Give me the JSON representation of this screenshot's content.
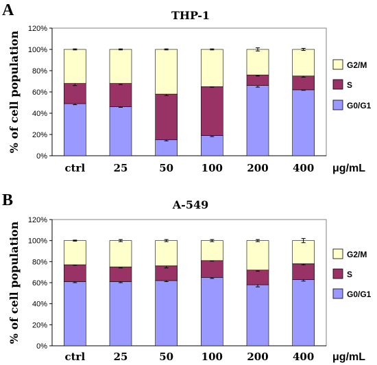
{
  "chart_data": [
    {
      "type": "bar",
      "stacked": true,
      "panel_label": "A",
      "title": "THP-1",
      "ylabel": "% of cell population",
      "xunit": "μg/mL",
      "categories": [
        "ctrl",
        "25",
        "50",
        "100",
        "200",
        "400"
      ],
      "yticks": [
        "0%",
        "20%",
        "40%",
        "60%",
        "80%",
        "100%",
        "120%"
      ],
      "ylim": [
        0,
        120
      ],
      "grid": false,
      "legend_position": "right",
      "series": [
        {
          "name": "G0/G1",
          "color": "#9999FF",
          "values": [
            49,
            46,
            15,
            19,
            66,
            62
          ],
          "errors": [
            1,
            0.5,
            1,
            1,
            1.5,
            0.5
          ]
        },
        {
          "name": "S",
          "color": "#993366",
          "values": [
            19,
            22,
            43,
            46,
            10,
            13
          ],
          "errors": [
            2,
            1,
            1.5,
            0.5,
            1,
            1
          ]
        },
        {
          "name": "G2/M",
          "color": "#FFFFCC",
          "values": [
            32,
            32,
            42,
            35,
            24,
            25
          ],
          "errors": [
            0.5,
            0.5,
            0.5,
            0.5,
            1.5,
            1
          ]
        }
      ],
      "legend_order": [
        "G2/M",
        "S",
        "G0/G1"
      ]
    },
    {
      "type": "bar",
      "stacked": true,
      "panel_label": "B",
      "title": "A-549",
      "ylabel": "% of cell population",
      "xunit": "μg/mL",
      "categories": [
        "ctrl",
        "25",
        "50",
        "100",
        "200",
        "400"
      ],
      "yticks": [
        "0%",
        "20%",
        "40%",
        "60%",
        "80%",
        "100%",
        "120%"
      ],
      "ylim": [
        0,
        120
      ],
      "grid": false,
      "legend_position": "right",
      "series": [
        {
          "name": "G0/G1",
          "color": "#9999FF",
          "values": [
            61,
            61,
            62,
            65,
            58,
            63
          ],
          "errors": [
            1,
            1,
            1,
            1,
            2,
            1.5
          ]
        },
        {
          "name": "S",
          "color": "#993366",
          "values": [
            16,
            14,
            14,
            16,
            14,
            15
          ],
          "errors": [
            0.5,
            1,
            2,
            0.5,
            1,
            1
          ]
        },
        {
          "name": "G2/M",
          "color": "#FFFFCC",
          "values": [
            23,
            25,
            24,
            19,
            28,
            22
          ],
          "errors": [
            0.5,
            1,
            1,
            1,
            1,
            2
          ]
        }
      ],
      "legend_order": [
        "G2/M",
        "S",
        "G0/G1"
      ]
    }
  ]
}
